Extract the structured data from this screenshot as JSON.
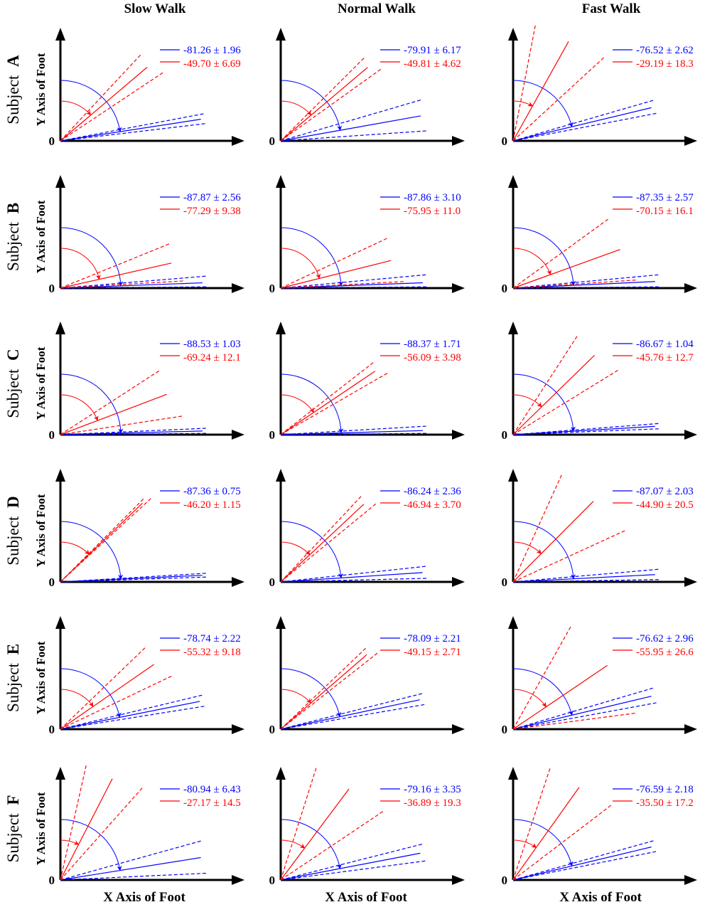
{
  "chart_data": {
    "type": "angle-diagram-grid",
    "col_titles": [
      "Slow Walk",
      "Normal Walk",
      "Fast Walk"
    ],
    "row_label_prefix": "Subject",
    "rows": [
      "A",
      "B",
      "C",
      "D",
      "E",
      "F"
    ],
    "ylabel": "Y Axis of Foot",
    "xlabel": "X Axis of Foot",
    "origin_label": "0",
    "series_colors": {
      "blue": "#0000ff",
      "red": "#ff0000"
    },
    "panels": [
      [
        {
          "blue": {
            "text": "-81.26 ± 1.96",
            "mean": -81.26,
            "sd": 1.96
          },
          "red": {
            "text": "-49.70 ± 6.69",
            "mean": -49.7,
            "sd": 6.69
          }
        },
        {
          "blue": {
            "text": "-79.91 ± 6.17",
            "mean": -79.91,
            "sd": 6.17
          },
          "red": {
            "text": "-49.81 ± 4.62",
            "mean": -49.81,
            "sd": 4.62
          }
        },
        {
          "blue": {
            "text": "-76.52 ± 2.62",
            "mean": -76.52,
            "sd": 2.62
          },
          "red": {
            "text": "-29.19 ± 18.3",
            "mean": -29.19,
            "sd": 18.3
          }
        }
      ],
      [
        {
          "blue": {
            "text": "-87.87 ± 2.56",
            "mean": -87.87,
            "sd": 2.56
          },
          "red": {
            "text": "-77.29 ± 9.38",
            "mean": -77.29,
            "sd": 9.38
          }
        },
        {
          "blue": {
            "text": "-87.86 ± 3.10",
            "mean": -87.86,
            "sd": 3.1
          },
          "red": {
            "text": "-75.95 ± 11.0",
            "mean": -75.95,
            "sd": 11.0
          }
        },
        {
          "blue": {
            "text": "-87.35 ± 2.57",
            "mean": -87.35,
            "sd": 2.57
          },
          "red": {
            "text": "-70.15 ± 16.1",
            "mean": -70.15,
            "sd": 16.1
          }
        }
      ],
      [
        {
          "blue": {
            "text": "-88.53 ± 1.03",
            "mean": -88.53,
            "sd": 1.03
          },
          "red": {
            "text": "-69.24 ± 12.1",
            "mean": -69.24,
            "sd": 12.1
          }
        },
        {
          "blue": {
            "text": "-88.37 ± 1.71",
            "mean": -88.37,
            "sd": 1.71
          },
          "red": {
            "text": "-56.09 ± 3.98",
            "mean": -56.09,
            "sd": 3.98
          }
        },
        {
          "blue": {
            "text": "-86.67 ± 1.04",
            "mean": -86.67,
            "sd": 1.04
          },
          "red": {
            "text": "-45.76 ± 12.7",
            "mean": -45.76,
            "sd": 12.7
          }
        }
      ],
      [
        {
          "blue": {
            "text": "-87.36 ± 0.75",
            "mean": -87.36,
            "sd": 0.75
          },
          "red": {
            "text": "-46.20 ± 1.15",
            "mean": -46.2,
            "sd": 1.15
          }
        },
        {
          "blue": {
            "text": "-86.24 ± 2.36",
            "mean": -86.24,
            "sd": 2.36
          },
          "red": {
            "text": "-46.94 ± 3.70",
            "mean": -46.94,
            "sd": 3.7
          }
        },
        {
          "blue": {
            "text": "-87.07 ± 2.03",
            "mean": -87.07,
            "sd": 2.03
          },
          "red": {
            "text": "-44.90 ± 20.5",
            "mean": -44.9,
            "sd": 20.5
          }
        }
      ],
      [
        {
          "blue": {
            "text": "-78.74 ± 2.22",
            "mean": -78.74,
            "sd": 2.22
          },
          "red": {
            "text": "-55.32 ± 9.18",
            "mean": -55.32,
            "sd": 9.18
          }
        },
        {
          "blue": {
            "text": "-78.09 ± 2.21",
            "mean": -78.09,
            "sd": 2.21
          },
          "red": {
            "text": "-49.15 ± 2.71",
            "mean": -49.15,
            "sd": 2.71
          }
        },
        {
          "blue": {
            "text": "-76.62 ± 2.96",
            "mean": -76.62,
            "sd": 2.96
          },
          "red": {
            "text": "-55.95 ± 26.6",
            "mean": -55.95,
            "sd": 26.6
          }
        }
      ],
      [
        {
          "blue": {
            "text": "-80.94 ± 6.43",
            "mean": -80.94,
            "sd": 6.43
          },
          "red": {
            "text": "-27.17 ± 14.5",
            "mean": -27.17,
            "sd": 14.5
          }
        },
        {
          "blue": {
            "text": "-79.16 ± 3.35",
            "mean": -79.16,
            "sd": 3.35
          },
          "red": {
            "text": "-36.89 ± 19.3",
            "mean": -36.89,
            "sd": 19.3
          }
        },
        {
          "blue": {
            "text": "-76.59 ± 2.18",
            "mean": -76.59,
            "sd": 2.18
          },
          "red": {
            "text": "-35.50 ± 17.2",
            "mean": -35.5,
            "sd": 17.2
          }
        }
      ]
    ]
  }
}
